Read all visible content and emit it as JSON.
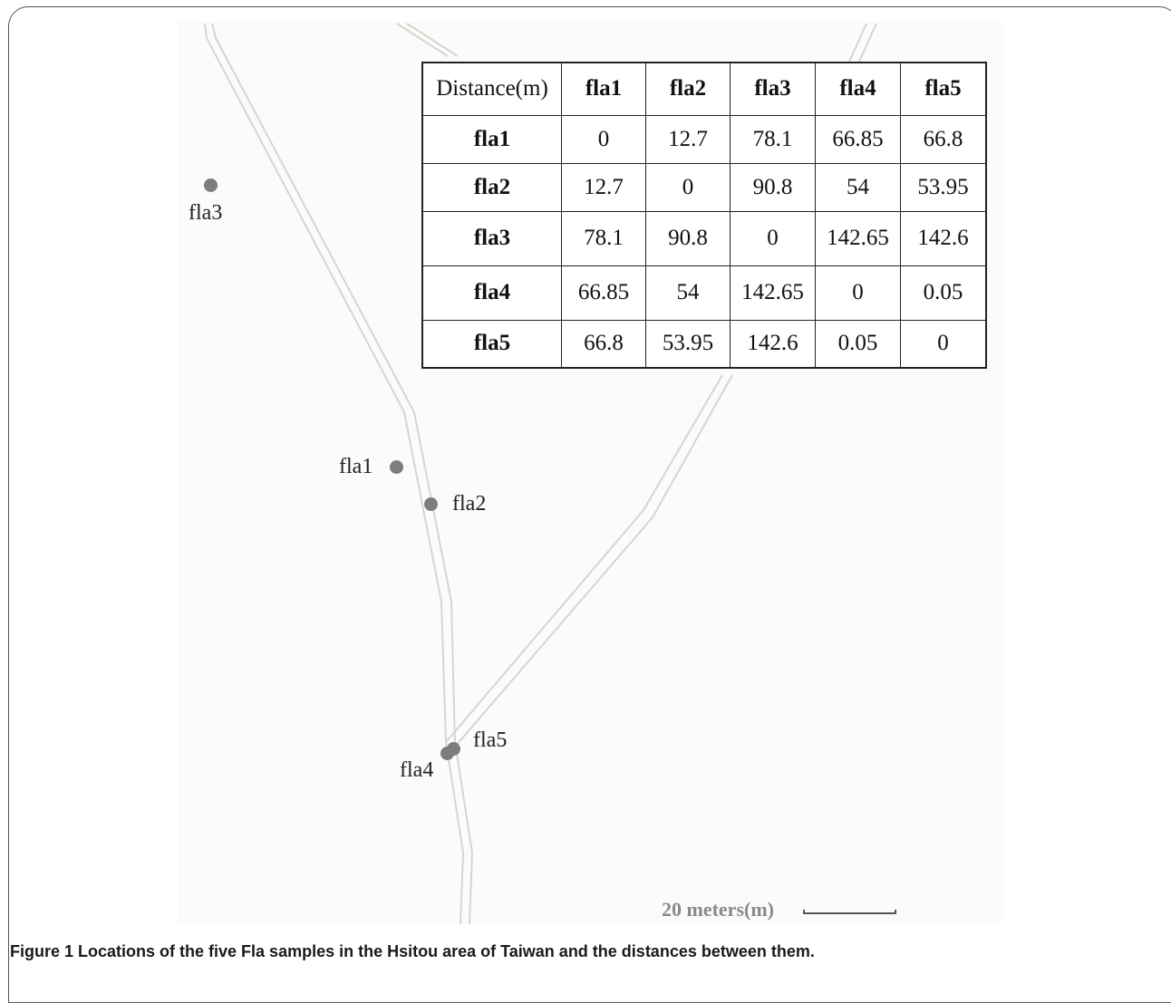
{
  "map": {
    "points": [
      {
        "id": "fla1",
        "label": "fla1"
      },
      {
        "id": "fla2",
        "label": "fla2"
      },
      {
        "id": "fla3",
        "label": "fla3"
      },
      {
        "id": "fla4",
        "label": "fla4"
      },
      {
        "id": "fla5",
        "label": "fla5"
      }
    ],
    "scale_label": "20 meters(m)",
    "colors": {
      "background": "#fbfbfb",
      "road": "#d6d6ce",
      "point": "#7d7d7d"
    }
  },
  "table": {
    "header": [
      "Distance(m)",
      "fla1",
      "fla2",
      "fla3",
      "fla4",
      "fla5"
    ],
    "rows": [
      {
        "name": "fla1",
        "values": [
          "0",
          "12.7",
          "78.1",
          "66.85",
          "66.8"
        ]
      },
      {
        "name": "fla2",
        "values": [
          "12.7",
          "0",
          "90.8",
          "54",
          "53.95"
        ]
      },
      {
        "name": "fla3",
        "values": [
          "78.1",
          "90.8",
          "0",
          "142.65",
          "142.6"
        ]
      },
      {
        "name": "fla4",
        "values": [
          "66.85",
          "54",
          "142.65",
          "0",
          "0.05"
        ]
      },
      {
        "name": "fla5",
        "values": [
          "66.8",
          "53.95",
          "142.6",
          "0.05",
          "0"
        ]
      }
    ]
  },
  "caption": {
    "label": "Figure 1",
    "text": "Locations of the five Fla samples in the Hsitou area of Taiwan and the distances between them."
  }
}
